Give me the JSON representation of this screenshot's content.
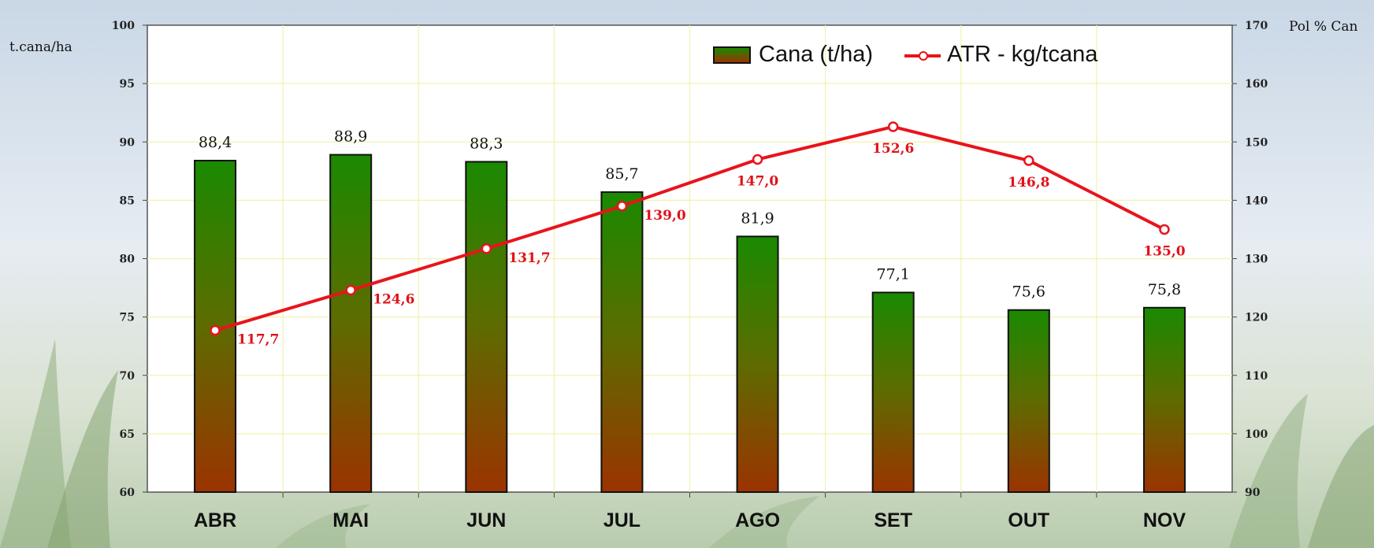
{
  "chart_data": {
    "type": "bar",
    "categories": [
      "ABR",
      "MAI",
      "JUN",
      "JUL",
      "AGO",
      "SET",
      "OUT",
      "NOV"
    ],
    "series": [
      {
        "name": "Cana (t/ha)",
        "type": "bar",
        "axis": "left",
        "values": [
          88.4,
          88.9,
          88.3,
          85.7,
          81.9,
          77.1,
          75.6,
          75.8
        ],
        "labels": [
          "88,4",
          "88,9",
          "88,3",
          "85,7",
          "81,9",
          "77,1",
          "75,6",
          "75,8"
        ],
        "color_top": "#1a8a00",
        "color_bottom": "#9b3300"
      },
      {
        "name": "ATR - kg/tcana",
        "type": "line",
        "axis": "right",
        "values": [
          117.7,
          124.6,
          131.7,
          139.0,
          147.0,
          152.6,
          146.8,
          135.0
        ],
        "labels": [
          "117,7",
          "124,6",
          "131,7",
          "139,0",
          "147,0",
          "152,6",
          "146,8",
          "135,0"
        ],
        "color": "#e8141b"
      }
    ],
    "ylabel": "t.cana/ha",
    "y2label": "Pol % Can",
    "ylim": [
      60,
      100
    ],
    "yticks": [
      60,
      65,
      70,
      75,
      80,
      85,
      90,
      95,
      100
    ],
    "y2lim": [
      90,
      170
    ],
    "y2ticks": [
      90,
      100,
      110,
      120,
      130,
      140,
      150,
      160,
      170
    ],
    "grid": true,
    "legend_position": "top-right"
  }
}
